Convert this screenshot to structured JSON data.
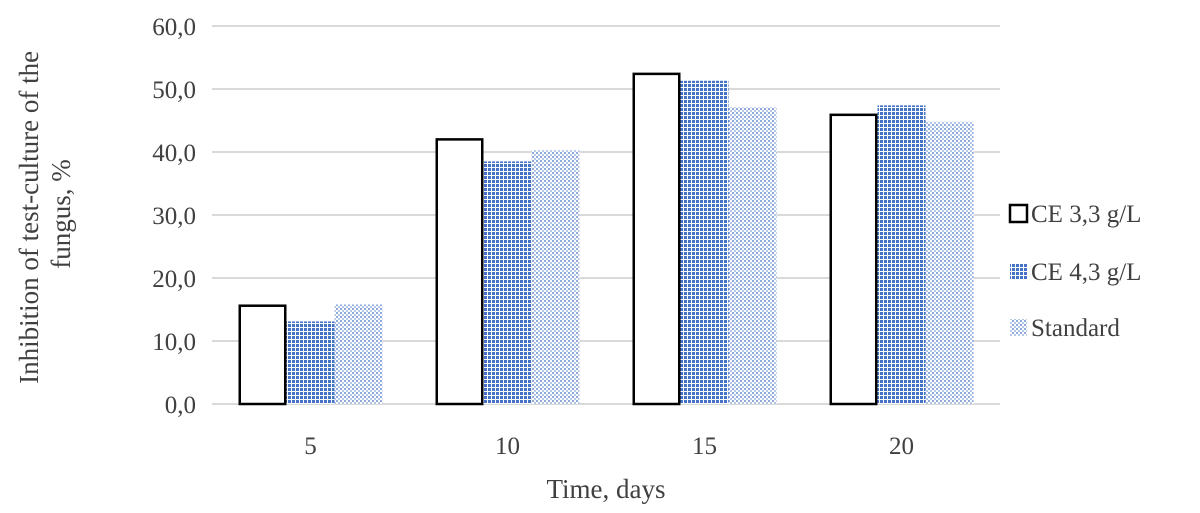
{
  "chart_data": {
    "type": "bar",
    "title": "",
    "xlabel": "Time, days",
    "ylabel": [
      "Inhibition of test-culture of the",
      "fungus, %"
    ],
    "categories": [
      "5",
      "10",
      "15",
      "20"
    ],
    "ylim": [
      0,
      60
    ],
    "ytick_step": 10,
    "ytick_labels": [
      "0,0",
      "10,0",
      "20,0",
      "30,0",
      "40,0",
      "50,0",
      "60,0"
    ],
    "grid": true,
    "legend_position": "right",
    "series": [
      {
        "name": "CE 3,3 g/L",
        "values": [
          15.8,
          42.2,
          52.6,
          46.1
        ],
        "style": "outline",
        "color": "#000000"
      },
      {
        "name": "CE 4,3 g/L",
        "values": [
          13.1,
          38.5,
          51.3,
          47.4
        ],
        "style": "dense-dots",
        "color": "#4472c4"
      },
      {
        "name": "Standard",
        "values": [
          15.8,
          40.3,
          47.1,
          44.8
        ],
        "style": "sparse-dots",
        "color": "#8faadc"
      }
    ],
    "gridline_color": "#d9d9d9"
  }
}
